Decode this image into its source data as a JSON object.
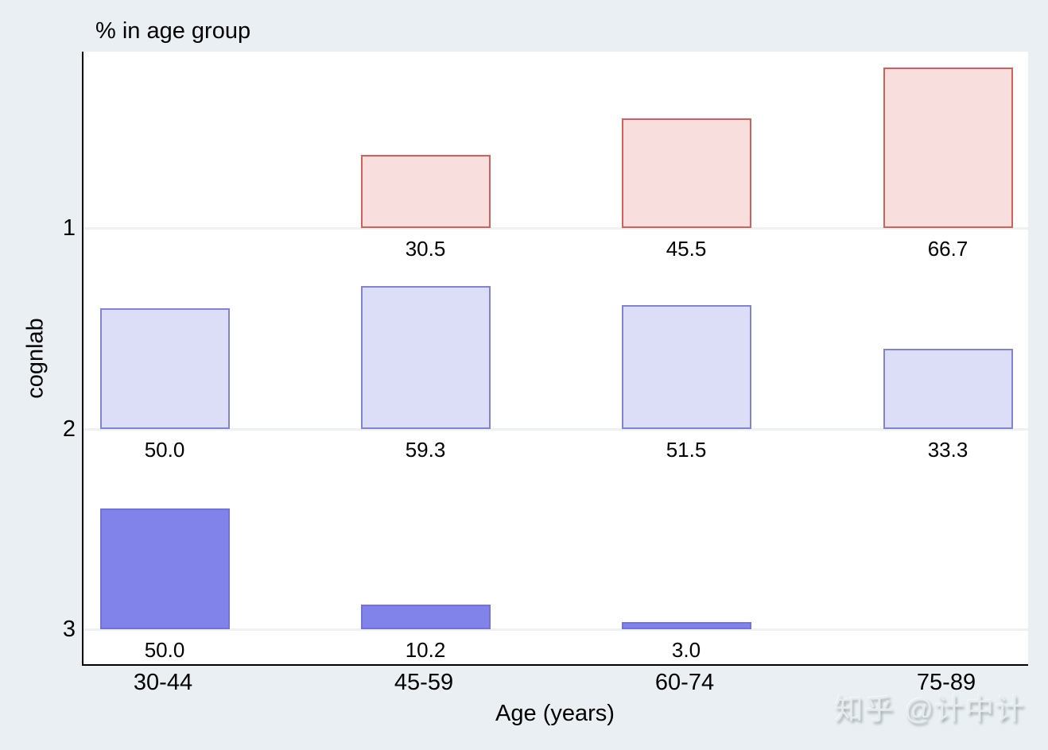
{
  "chart_data": {
    "type": "bar",
    "title": "% in age group",
    "xlabel": "Age (years)",
    "ylabel": "cognlab",
    "categories": [
      "30-44",
      "45-59",
      "60-74",
      "75-89"
    ],
    "series": [
      {
        "name": "1",
        "values": [
          null,
          30.5,
          45.5,
          66.7
        ],
        "fill": "#f8dedd",
        "border": "#d4605b"
      },
      {
        "name": "2",
        "values": [
          50.0,
          59.3,
          51.5,
          33.3
        ],
        "fill": "#dcddf7",
        "border": "#8182d8"
      },
      {
        "name": "3",
        "values": [
          50.0,
          10.2,
          3.0,
          null
        ],
        "fill": "#8283ea",
        "border": "#7173db"
      }
    ],
    "orientation": "vertical bars rising from each category baseline",
    "value_labels_shown": true,
    "value_label_format": "one decimal place, shown below baseline",
    "unit": "percent",
    "grid": true,
    "legend": "none",
    "axis_ranges": {
      "y_categories": [
        "1",
        "2",
        "3"
      ],
      "bar_scale_percent_max": 100
    },
    "colors": {
      "background": "#e9eff2",
      "plot_background": "#ffffff",
      "gridline": "#edf1f0",
      "axis": "#000000",
      "text": "#000000"
    },
    "watermark": "知乎 @计中计"
  }
}
